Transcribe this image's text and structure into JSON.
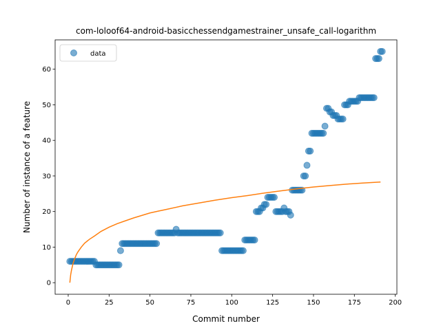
{
  "chart_data": {
    "type": "scatter",
    "title": "com-loloof64-android-basicchessendgamestrainer_unsafe_call-logarithm",
    "xlabel": "Commit number",
    "ylabel": "Number of instance of a feature",
    "xlim": [
      -8,
      201
    ],
    "ylim": [
      -3.25,
      68.25
    ],
    "xticks": [
      0,
      25,
      50,
      75,
      100,
      125,
      150,
      175,
      200
    ],
    "yticks": [
      0,
      10,
      20,
      30,
      40,
      50,
      60
    ],
    "grid": false,
    "legend": {
      "position": "top-left",
      "entries": [
        "data"
      ]
    },
    "colors": {
      "data": "#1f77b4",
      "fit": "#ff7f0e"
    },
    "series": [
      {
        "name": "data",
        "kind": "scatter",
        "points": [
          [
            1,
            6
          ],
          [
            2,
            6
          ],
          [
            3,
            6
          ],
          [
            4,
            6
          ],
          [
            5,
            6
          ],
          [
            6,
            6
          ],
          [
            7,
            6
          ],
          [
            8,
            6
          ],
          [
            9,
            6
          ],
          [
            10,
            6
          ],
          [
            11,
            6
          ],
          [
            12,
            6
          ],
          [
            13,
            6
          ],
          [
            14,
            6
          ],
          [
            15,
            6
          ],
          [
            16,
            6
          ],
          [
            17,
            5
          ],
          [
            18,
            5
          ],
          [
            19,
            5
          ],
          [
            20,
            5
          ],
          [
            21,
            5
          ],
          [
            22,
            5
          ],
          [
            23,
            5
          ],
          [
            24,
            5
          ],
          [
            25,
            5
          ],
          [
            26,
            5
          ],
          [
            27,
            5
          ],
          [
            28,
            5
          ],
          [
            29,
            5
          ],
          [
            30,
            5
          ],
          [
            31,
            5
          ],
          [
            32,
            9
          ],
          [
            33,
            11
          ],
          [
            34,
            11
          ],
          [
            35,
            11
          ],
          [
            36,
            11
          ],
          [
            37,
            11
          ],
          [
            38,
            11
          ],
          [
            39,
            11
          ],
          [
            40,
            11
          ],
          [
            41,
            11
          ],
          [
            42,
            11
          ],
          [
            43,
            11
          ],
          [
            44,
            11
          ],
          [
            45,
            11
          ],
          [
            46,
            11
          ],
          [
            47,
            11
          ],
          [
            48,
            11
          ],
          [
            49,
            11
          ],
          [
            50,
            11
          ],
          [
            51,
            11
          ],
          [
            52,
            11
          ],
          [
            53,
            11
          ],
          [
            54,
            11
          ],
          [
            55,
            14
          ],
          [
            56,
            14
          ],
          [
            57,
            14
          ],
          [
            58,
            14
          ],
          [
            59,
            14
          ],
          [
            60,
            14
          ],
          [
            61,
            14
          ],
          [
            62,
            14
          ],
          [
            63,
            14
          ],
          [
            64,
            14
          ],
          [
            65,
            14
          ],
          [
            66,
            15
          ],
          [
            67,
            14
          ],
          [
            68,
            14
          ],
          [
            69,
            14
          ],
          [
            70,
            14
          ],
          [
            71,
            14
          ],
          [
            72,
            14
          ],
          [
            73,
            14
          ],
          [
            74,
            14
          ],
          [
            75,
            14
          ],
          [
            76,
            14
          ],
          [
            77,
            14
          ],
          [
            78,
            14
          ],
          [
            79,
            14
          ],
          [
            80,
            14
          ],
          [
            81,
            14
          ],
          [
            82,
            14
          ],
          [
            83,
            14
          ],
          [
            84,
            14
          ],
          [
            85,
            14
          ],
          [
            86,
            14
          ],
          [
            87,
            14
          ],
          [
            88,
            14
          ],
          [
            89,
            14
          ],
          [
            90,
            14
          ],
          [
            91,
            14
          ],
          [
            92,
            14
          ],
          [
            93,
            14
          ],
          [
            94,
            9
          ],
          [
            95,
            9
          ],
          [
            96,
            9
          ],
          [
            97,
            9
          ],
          [
            98,
            9
          ],
          [
            99,
            9
          ],
          [
            100,
            9
          ],
          [
            101,
            9
          ],
          [
            102,
            9
          ],
          [
            103,
            9
          ],
          [
            104,
            9
          ],
          [
            105,
            9
          ],
          [
            106,
            9
          ],
          [
            107,
            9
          ],
          [
            108,
            12
          ],
          [
            109,
            12
          ],
          [
            110,
            12
          ],
          [
            111,
            12
          ],
          [
            112,
            12
          ],
          [
            113,
            12
          ],
          [
            114,
            12
          ],
          [
            115,
            20
          ],
          [
            116,
            20
          ],
          [
            117,
            20
          ],
          [
            118,
            21
          ],
          [
            119,
            21
          ],
          [
            120,
            22
          ],
          [
            121,
            22
          ],
          [
            122,
            24
          ],
          [
            123,
            24
          ],
          [
            124,
            24
          ],
          [
            125,
            24
          ],
          [
            126,
            24
          ],
          [
            127,
            20
          ],
          [
            128,
            20
          ],
          [
            129,
            20
          ],
          [
            130,
            20
          ],
          [
            131,
            20
          ],
          [
            132,
            21
          ],
          [
            133,
            20
          ],
          [
            134,
            20
          ],
          [
            135,
            20
          ],
          [
            136,
            19
          ],
          [
            137,
            26
          ],
          [
            138,
            26
          ],
          [
            139,
            26
          ],
          [
            140,
            26
          ],
          [
            141,
            26
          ],
          [
            142,
            26
          ],
          [
            143,
            26
          ],
          [
            144,
            30
          ],
          [
            145,
            30
          ],
          [
            146,
            33
          ],
          [
            147,
            37
          ],
          [
            148,
            37
          ],
          [
            149,
            42
          ],
          [
            150,
            42
          ],
          [
            151,
            42
          ],
          [
            152,
            42
          ],
          [
            153,
            42
          ],
          [
            154,
            42
          ],
          [
            155,
            42
          ],
          [
            156,
            42
          ],
          [
            157,
            44
          ],
          [
            158,
            49
          ],
          [
            159,
            49
          ],
          [
            160,
            48
          ],
          [
            161,
            48
          ],
          [
            162,
            47
          ],
          [
            163,
            47
          ],
          [
            164,
            47
          ],
          [
            165,
            46
          ],
          [
            166,
            46
          ],
          [
            167,
            46
          ],
          [
            168,
            46
          ],
          [
            169,
            50
          ],
          [
            170,
            50
          ],
          [
            171,
            50
          ],
          [
            172,
            51
          ],
          [
            173,
            51
          ],
          [
            174,
            51
          ],
          [
            175,
            51
          ],
          [
            176,
            51
          ],
          [
            177,
            51
          ],
          [
            178,
            52
          ],
          [
            179,
            52
          ],
          [
            180,
            52
          ],
          [
            181,
            52
          ],
          [
            182,
            52
          ],
          [
            183,
            52
          ],
          [
            184,
            52
          ],
          [
            185,
            52
          ],
          [
            186,
            52
          ],
          [
            187,
            52
          ],
          [
            188,
            63
          ],
          [
            189,
            63
          ],
          [
            190,
            63
          ],
          [
            191,
            65
          ],
          [
            192,
            65
          ]
        ]
      },
      {
        "kind": "line",
        "model": "logarithmic",
        "points": [
          [
            1,
            0
          ],
          [
            1.5,
            2.2
          ],
          [
            2,
            3.5
          ],
          [
            3,
            5.5
          ],
          [
            4,
            6.8
          ],
          [
            5,
            7.9
          ],
          [
            6,
            8.7
          ],
          [
            8,
            10.0
          ],
          [
            10,
            11.1
          ],
          [
            13,
            12.2
          ],
          [
            16,
            13.1
          ],
          [
            20,
            14.4
          ],
          [
            25,
            15.6
          ],
          [
            30,
            16.6
          ],
          [
            35,
            17.4
          ],
          [
            40,
            18.2
          ],
          [
            45,
            18.9
          ],
          [
            50,
            19.6
          ],
          [
            55,
            20.1
          ],
          [
            60,
            20.6
          ],
          [
            70,
            21.6
          ],
          [
            80,
            22.4
          ],
          [
            90,
            23.2
          ],
          [
            100,
            23.9
          ],
          [
            110,
            24.5
          ],
          [
            120,
            25.2
          ],
          [
            130,
            25.8
          ],
          [
            140,
            26.4
          ],
          [
            150,
            26.9
          ],
          [
            160,
            27.3
          ],
          [
            170,
            27.7
          ],
          [
            180,
            28.0
          ],
          [
            191,
            28.3
          ]
        ]
      }
    ]
  }
}
